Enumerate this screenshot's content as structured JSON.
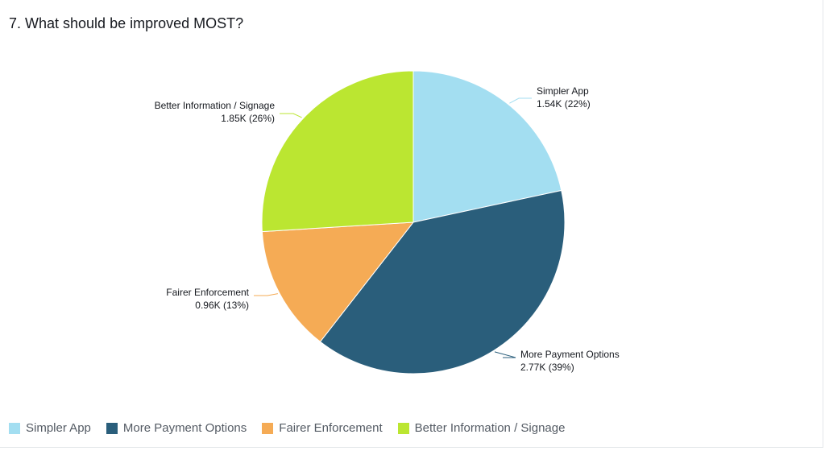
{
  "title": "7. What should be improved MOST?",
  "chart_data": {
    "type": "pie",
    "title": "7. What should be improved MOST?",
    "slices": [
      {
        "name": "Simpler App",
        "value": 1.54,
        "value_label": "1.54K",
        "percent": 22,
        "percent_label": "(22%)",
        "color": "#a3def1"
      },
      {
        "name": "More Payment Options",
        "value": 2.77,
        "value_label": "2.77K",
        "percent": 39,
        "percent_label": "(39%)",
        "color": "#2a5e7b"
      },
      {
        "name": "Fairer Enforcement",
        "value": 0.96,
        "value_label": "0.96K",
        "percent": 13,
        "percent_label": "(13%)",
        "color": "#f5ab55"
      },
      {
        "name": "Better Information / Signage",
        "value": 1.85,
        "value_label": "1.85K",
        "percent": 26,
        "percent_label": "(26%)",
        "color": "#bbe631"
      }
    ],
    "start": "12 o'clock, clockwise",
    "legend_position": "bottom-left"
  }
}
